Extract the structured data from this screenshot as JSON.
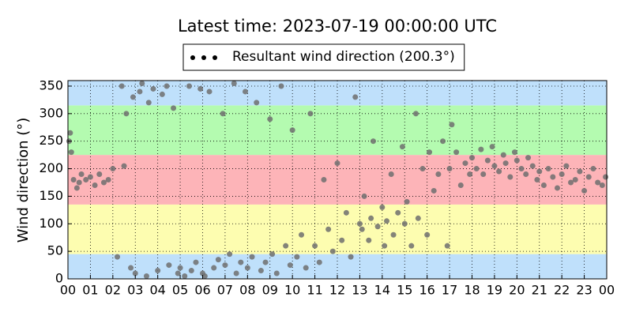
{
  "chart_data": {
    "type": "scatter",
    "title": "Latest time: 2023-07-19 00:00:00 UTC",
    "y_label": "Wind direction (°)",
    "series": [
      {
        "name": "Resultant wind direction (200.3°)",
        "color": "#6e6e6e",
        "x": [
          0.05,
          0.1,
          0.15,
          0.25,
          0.4,
          0.5,
          0.6,
          0.8,
          1.0,
          1.2,
          1.4,
          1.6,
          1.8,
          2.0,
          2.2,
          2.4,
          2.5,
          2.6,
          2.8,
          2.9,
          3.0,
          3.2,
          3.3,
          3.5,
          3.6,
          3.8,
          4.0,
          4.2,
          4.4,
          4.5,
          4.7,
          4.9,
          5.0,
          5.2,
          5.4,
          5.5,
          5.7,
          5.9,
          6.0,
          6.1,
          6.3,
          6.5,
          6.7,
          6.9,
          7.0,
          7.2,
          7.4,
          7.5,
          7.7,
          7.9,
          8.0,
          8.2,
          8.4,
          8.6,
          8.8,
          9.0,
          9.1,
          9.3,
          9.5,
          9.7,
          9.9,
          10.0,
          10.2,
          10.4,
          10.6,
          10.8,
          11.0,
          11.2,
          11.4,
          11.6,
          11.8,
          12.0,
          12.2,
          12.4,
          12.6,
          12.8,
          13.0,
          13.1,
          13.2,
          13.4,
          13.5,
          13.6,
          13.8,
          14.0,
          14.1,
          14.2,
          14.4,
          14.5,
          14.7,
          14.9,
          15.0,
          15.1,
          15.3,
          15.5,
          15.6,
          15.8,
          16.0,
          16.1,
          16.3,
          16.5,
          16.7,
          16.9,
          17.0,
          17.1,
          17.3,
          17.5,
          17.7,
          17.9,
          18.0,
          18.2,
          18.4,
          18.5,
          18.7,
          18.9,
          19.0,
          19.2,
          19.4,
          19.5,
          19.7,
          19.9,
          20.0,
          20.2,
          20.4,
          20.5,
          20.7,
          20.9,
          21.0,
          21.2,
          21.4,
          21.6,
          21.8,
          22.0,
          22.2,
          22.4,
          22.6,
          22.8,
          23.0,
          23.2,
          23.4,
          23.6,
          23.8,
          23.95
        ],
        "values": [
          250,
          265,
          230,
          180,
          165,
          175,
          190,
          180,
          185,
          170,
          190,
          175,
          180,
          200,
          40,
          350,
          205,
          300,
          20,
          330,
          10,
          340,
          355,
          5,
          320,
          345,
          15,
          335,
          350,
          25,
          310,
          10,
          20,
          5,
          350,
          15,
          30,
          345,
          10,
          5,
          340,
          20,
          35,
          300,
          25,
          45,
          355,
          10,
          30,
          340,
          20,
          40,
          320,
          15,
          30,
          290,
          45,
          10,
          350,
          60,
          25,
          270,
          40,
          80,
          20,
          300,
          60,
          30,
          180,
          90,
          50,
          210,
          70,
          120,
          40,
          330,
          100,
          90,
          150,
          70,
          110,
          250,
          95,
          130,
          60,
          105,
          190,
          80,
          120,
          240,
          100,
          140,
          60,
          300,
          110,
          200,
          80,
          230,
          160,
          190,
          250,
          60,
          200,
          280,
          230,
          170,
          210,
          190,
          220,
          200,
          235,
          190,
          215,
          240,
          205,
          195,
          225,
          210,
          185,
          230,
          215,
          200,
          190,
          220,
          205,
          180,
          195,
          170,
          200,
          185,
          165,
          190,
          205,
          175,
          180,
          195,
          160,
          185,
          200,
          175,
          170,
          185
        ]
      }
    ],
    "xlim": [
      0,
      24
    ],
    "xticks": [
      {
        "value": 0,
        "label": "00"
      },
      {
        "value": 1,
        "label": "01"
      },
      {
        "value": 2,
        "label": "02"
      },
      {
        "value": 3,
        "label": "03"
      },
      {
        "value": 4,
        "label": "04"
      },
      {
        "value": 5,
        "label": "05"
      },
      {
        "value": 6,
        "label": "06"
      },
      {
        "value": 7,
        "label": "07"
      },
      {
        "value": 8,
        "label": "08"
      },
      {
        "value": 9,
        "label": "09"
      },
      {
        "value": 10,
        "label": "10"
      },
      {
        "value": 11,
        "label": "11"
      },
      {
        "value": 12,
        "label": "12"
      },
      {
        "value": 13,
        "label": "13"
      },
      {
        "value": 14,
        "label": "14"
      },
      {
        "value": 15,
        "label": "15"
      },
      {
        "value": 16,
        "label": "16"
      },
      {
        "value": 17,
        "label": "17"
      },
      {
        "value": 18,
        "label": "18"
      },
      {
        "value": 19,
        "label": "19"
      },
      {
        "value": 20,
        "label": "20"
      },
      {
        "value": 21,
        "label": "21"
      },
      {
        "value": 22,
        "label": "22"
      },
      {
        "value": 23,
        "label": "23"
      },
      {
        "value": 24,
        "label": "00"
      }
    ],
    "ylim": [
      0,
      360
    ],
    "yticks": [
      0,
      50,
      100,
      150,
      200,
      250,
      300,
      350
    ],
    "grid": true,
    "bands": [
      {
        "from": 0,
        "to": 45,
        "color": "#bfe0fb"
      },
      {
        "from": 45,
        "to": 135,
        "color": "#fdfdb0"
      },
      {
        "from": 135,
        "to": 225,
        "color": "#fdb4b8"
      },
      {
        "from": 225,
        "to": 315,
        "color": "#b4fbb0"
      },
      {
        "from": 315,
        "to": 360,
        "color": "#bfe0fb"
      }
    ],
    "legend": "top"
  }
}
